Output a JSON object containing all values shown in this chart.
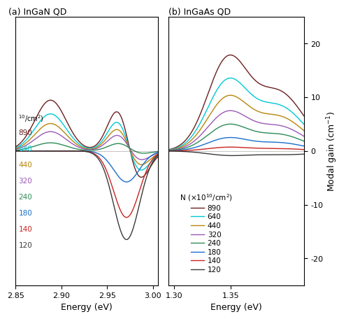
{
  "title_left": "(a) InGaN QD",
  "title_right": "(b) InGaAs QD",
  "ylabel": "Modal gain (cm$^{-1}$)",
  "xlabel": "Energy (eV)",
  "legend_labels": [
    "890",
    "640",
    "440",
    "320",
    "240",
    "180",
    "140",
    "120"
  ],
  "colors": [
    "#6b2020",
    "#00c8d4",
    "#b8860b",
    "#9b59b6",
    "#2e8b57",
    "#1a6fcc",
    "#cc2222",
    "#3a3a3a"
  ],
  "left_xlim": [
    2.85,
    3.005
  ],
  "left_xticks": [
    2.85,
    2.9,
    2.95,
    3.0
  ],
  "right_xlim": [
    1.295,
    1.415
  ],
  "right_xticks": [
    1.3,
    1.35
  ],
  "ylim": [
    -25,
    25
  ],
  "right_yticks": [
    -20,
    -10,
    0,
    10,
    20
  ]
}
